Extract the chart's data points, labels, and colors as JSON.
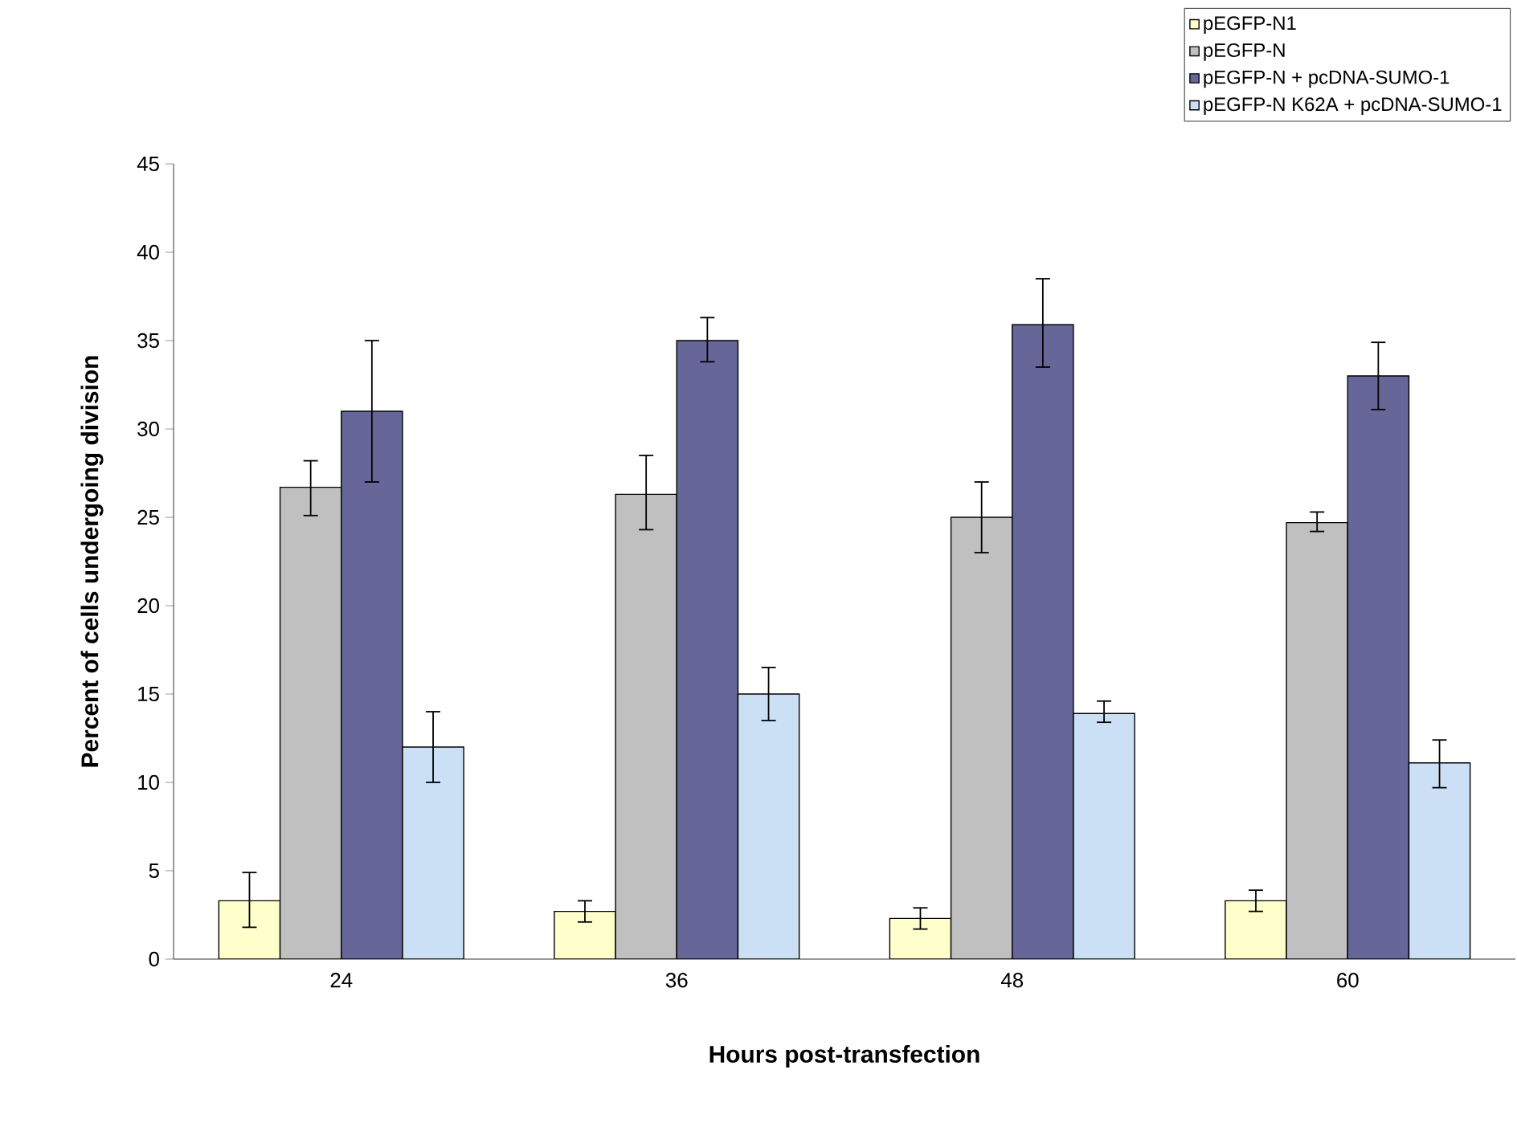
{
  "chart_data": {
    "type": "bar",
    "xlabel": "Hours post-transfection",
    "ylabel": "Percent of cells undergoing division",
    "categories": [
      "24",
      "36",
      "48",
      "60"
    ],
    "series": [
      {
        "name": "pEGFP-N1",
        "color": "#ffffcc",
        "values": [
          3.3,
          2.7,
          2.3,
          3.3
        ],
        "errors": [
          [
            1.8,
            4.9
          ],
          [
            2.1,
            3.3
          ],
          [
            1.7,
            2.9
          ],
          [
            2.7,
            3.9
          ]
        ]
      },
      {
        "name": "pEGFP-N",
        "color": "#c0c0c0",
        "values": [
          26.7,
          26.3,
          25.0,
          24.7
        ],
        "errors": [
          [
            25.1,
            28.2
          ],
          [
            24.3,
            28.5
          ],
          [
            23.0,
            27.0
          ],
          [
            24.2,
            25.3
          ]
        ]
      },
      {
        "name": "pEGFP-N + pcDNA-SUMO-1",
        "color": "#666699",
        "values": [
          31.0,
          35.0,
          35.9,
          33.0
        ],
        "errors": [
          [
            27.0,
            35.0
          ],
          [
            33.8,
            36.3
          ],
          [
            33.5,
            38.5
          ],
          [
            31.1,
            34.9
          ]
        ]
      },
      {
        "name": "pEGFP-N K62A + pcDNA-SUMO-1",
        "color": "#cce0f5",
        "values": [
          12.0,
          15.0,
          13.9,
          11.1
        ],
        "errors": [
          [
            10.0,
            14.0
          ],
          [
            13.5,
            16.5
          ],
          [
            13.4,
            14.6
          ],
          [
            9.7,
            12.4
          ]
        ]
      }
    ],
    "ylim": [
      0,
      45
    ],
    "yticks": [
      0,
      5,
      10,
      15,
      20,
      25,
      30,
      35,
      40,
      45
    ],
    "grid": false,
    "legend": "top right"
  }
}
